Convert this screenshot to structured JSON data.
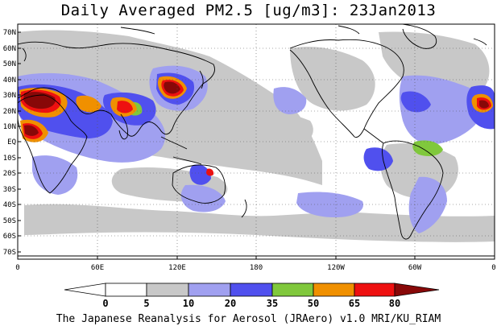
{
  "title": "Daily Averaged PM2.5 [ug/m3]: 23Jan2013",
  "footer": "The Japanese Reanalysis for Aerosol (JRAero) v1.0 MRI/KU_RIAM",
  "map": {
    "projection": "equirectangular",
    "lon_range": [
      0,
      360
    ],
    "lat_range": [
      -75,
      75
    ],
    "lat_ticks": [
      "70N",
      "60N",
      "50N",
      "40N",
      "30N",
      "20N",
      "10N",
      "EQ",
      "10S",
      "20S",
      "30S",
      "40S",
      "50S",
      "60S",
      "70S"
    ],
    "lon_ticks": [
      "0",
      "60E",
      "120E",
      "180",
      "120W",
      "60W",
      "0"
    ],
    "gridlines": "dotted"
  },
  "colorbar": {
    "levels": [
      "0",
      "5",
      "10",
      "20",
      "35",
      "50",
      "65",
      "80"
    ],
    "colors": [
      "#ffffff",
      "#c8c8c8",
      "#a0a0f0",
      "#5050ee",
      "#80c83c",
      "#f09000",
      "#ee1010",
      "#880808"
    ],
    "extend": "both"
  }
}
